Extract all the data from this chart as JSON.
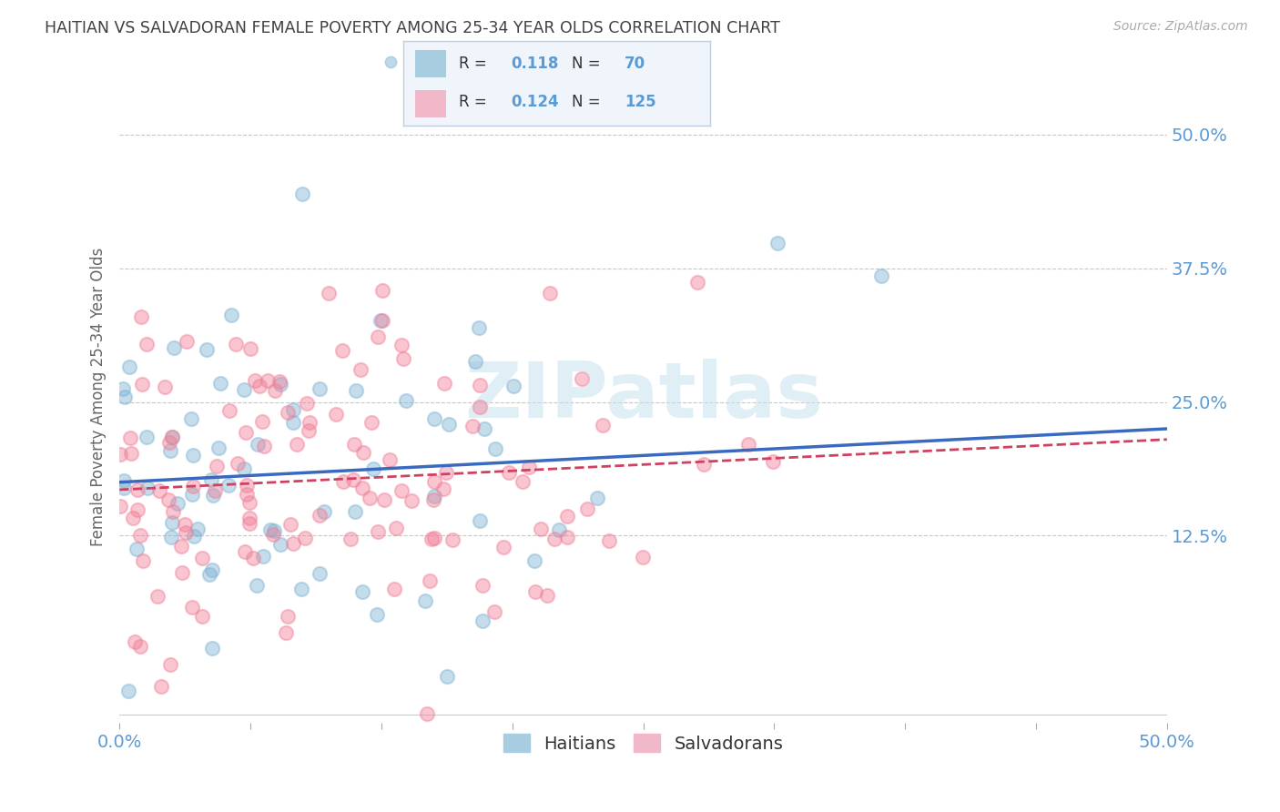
{
  "title": "HAITIAN VS SALVADORAN FEMALE POVERTY AMONG 25-34 YEAR OLDS CORRELATION CHART",
  "source": "Source: ZipAtlas.com",
  "ylabel": "Female Poverty Among 25-34 Year Olds",
  "yticks": [
    "50.0%",
    "37.5%",
    "25.0%",
    "12.5%"
  ],
  "ytick_vals": [
    0.5,
    0.375,
    0.25,
    0.125
  ],
  "xlim": [
    0.0,
    0.5
  ],
  "ylim": [
    -0.05,
    0.56
  ],
  "haitian_r": 0.118,
  "haitian_n": 70,
  "salvadoran_r": 0.124,
  "salvadoran_n": 125,
  "haitian_color": "#7fb3d3",
  "salvadoran_color": "#f08098",
  "haitian_line_color": "#3a6abf",
  "salvadoran_line_color": "#d04060",
  "haitian_legend_color": "#a8cce0",
  "salvadoran_legend_color": "#f0b8c8",
  "watermark": "ZIPatlas",
  "background_color": "#ffffff",
  "grid_color": "#c8c8c8",
  "title_color": "#404040",
  "tick_label_color": "#5b9bd5",
  "legend_box_color": "#f0f5fc",
  "legend_border_color": "#c0cce0",
  "bottom_legend_haitian": "Haitians",
  "bottom_legend_salvadoran": "Salvadorans",
  "trend_start_y": 0.175,
  "trend_end_y_haitian": 0.225,
  "trend_end_y_salvadoran": 0.215
}
